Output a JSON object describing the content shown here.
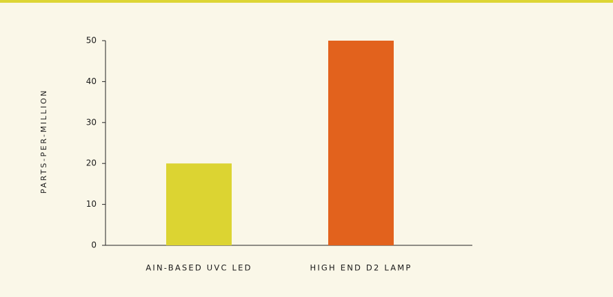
{
  "chart_data": {
    "type": "bar",
    "ylabel": "PARTS-PER-MILLION",
    "categories": [
      "AIN-BASED UVC LED",
      "HIGH END D2 LAMP"
    ],
    "values": [
      20,
      50
    ],
    "colors": [
      "#dcd432",
      "#e2621d"
    ],
    "ylim": [
      0,
      50
    ],
    "yticks": [
      0,
      10,
      20,
      30,
      40,
      50
    ],
    "grid": false
  }
}
